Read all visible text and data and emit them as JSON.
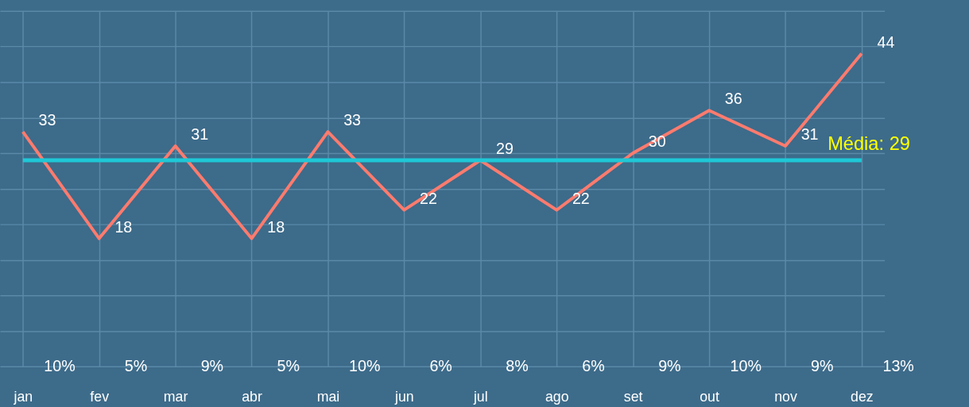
{
  "chart_data": {
    "type": "line",
    "categories": [
      "jan",
      "fev",
      "mar",
      "abr",
      "mai",
      "jun",
      "jul",
      "ago",
      "set",
      "out",
      "nov",
      "dez"
    ],
    "series": [
      {
        "color": "#ff7b6e",
        "values": [
          33,
          18,
          31,
          18,
          33,
          22,
          29,
          22,
          30,
          36,
          31,
          44
        ]
      }
    ],
    "ylim": [
      0,
      50
    ],
    "yticks": [
      0,
      5,
      10,
      15,
      20,
      25,
      30,
      35,
      40,
      45,
      50
    ],
    "tick_labels": "x",
    "grid": true,
    "data_labels": true,
    "ref_lines": [
      {
        "axis": "y",
        "value": 29,
        "label": "Média: 29",
        "color": "#1fc8d6"
      }
    ],
    "annotations": [
      "10%",
      "5%",
      "9%",
      "5%",
      "10%",
      "6%",
      "8%",
      "6%",
      "9%",
      "10%",
      "9%",
      "13%"
    ]
  }
}
